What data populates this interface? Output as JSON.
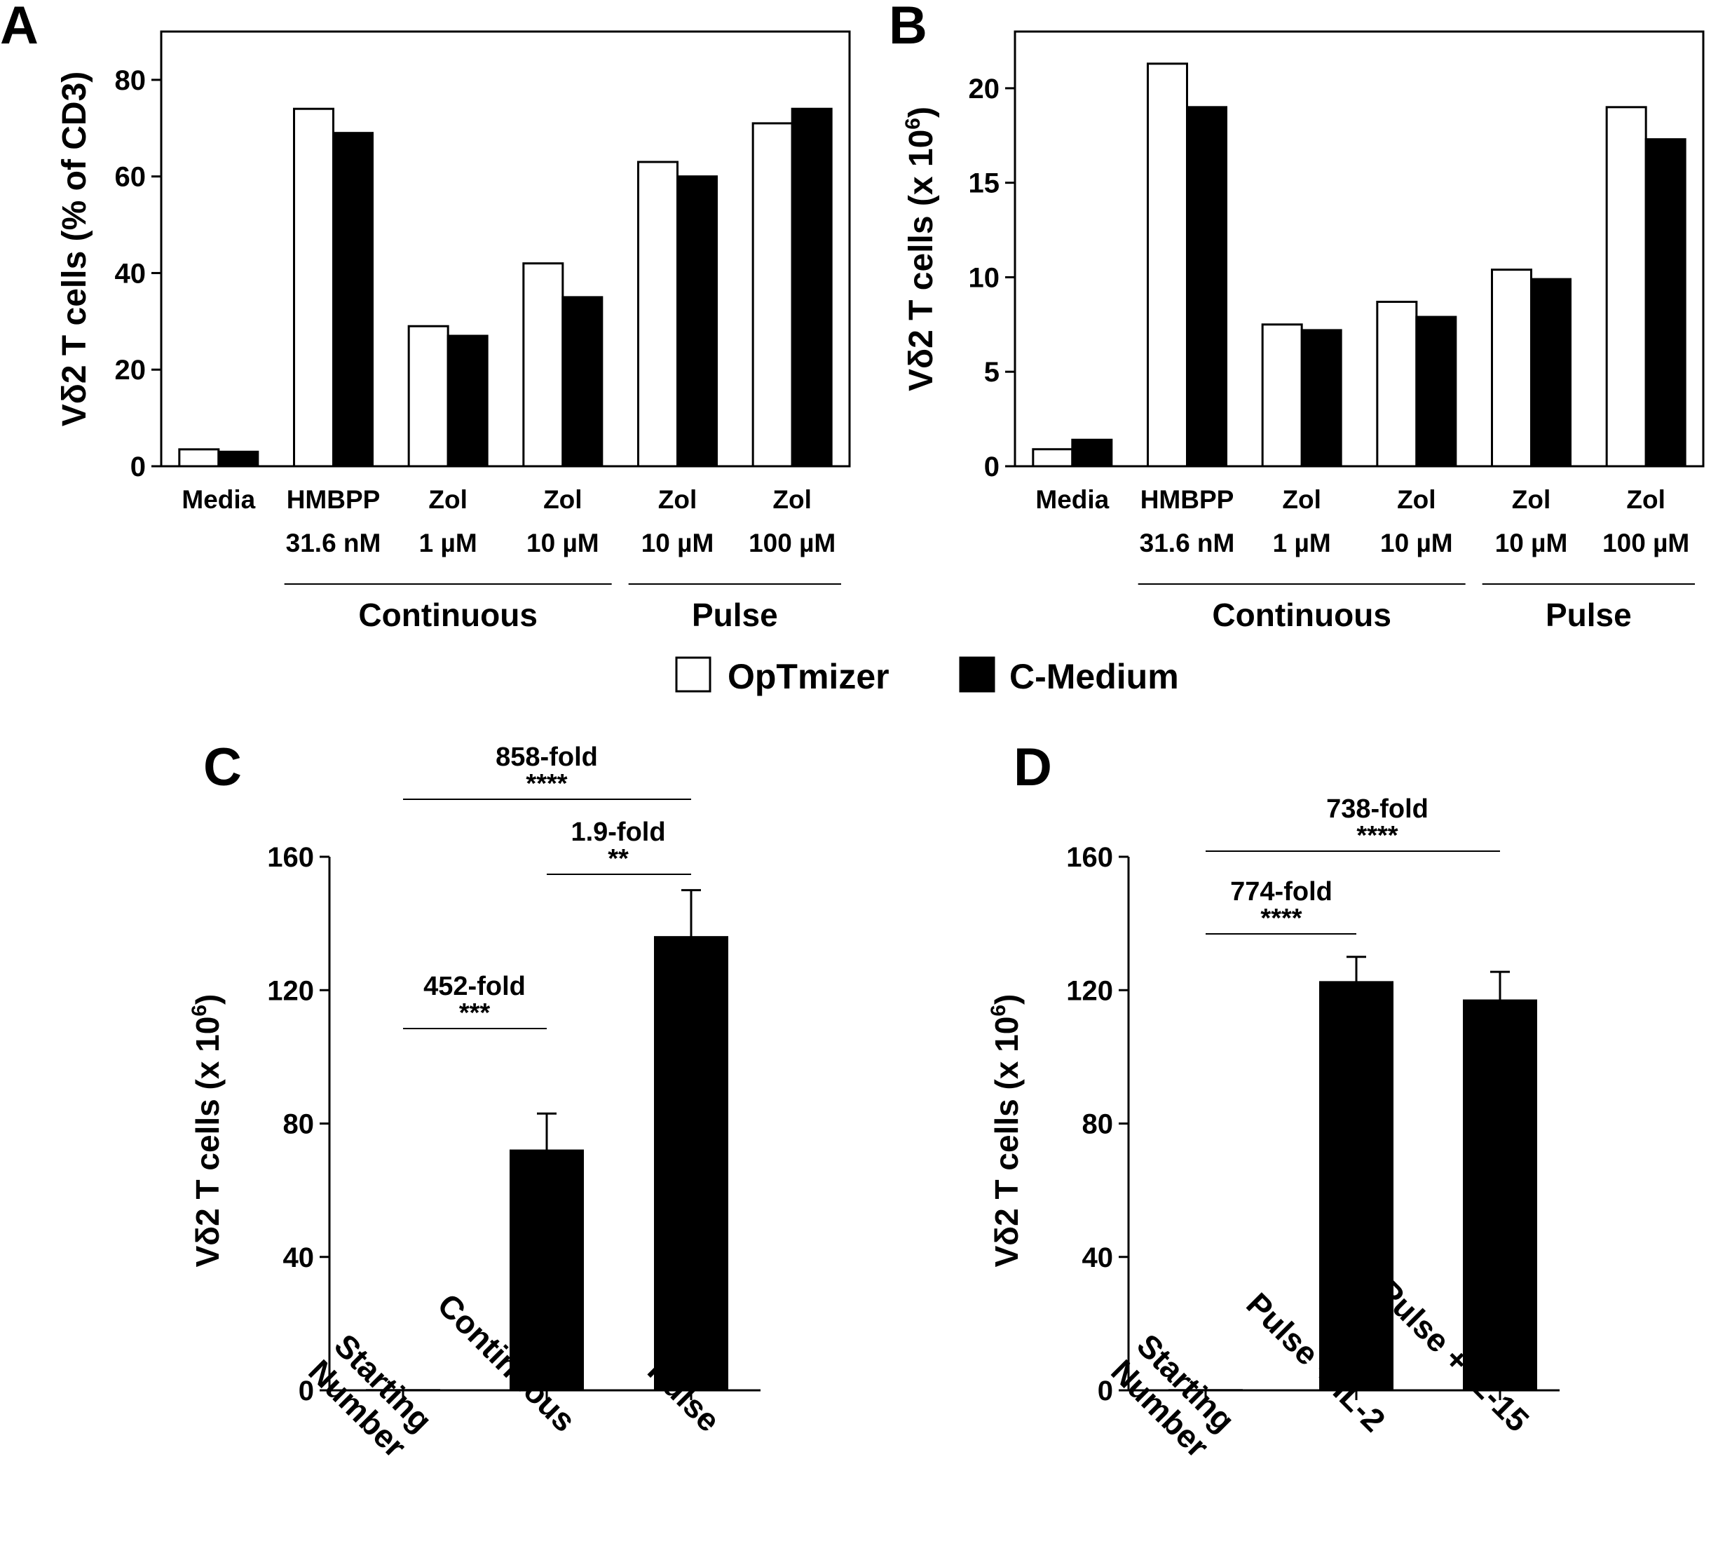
{
  "legend": {
    "items": [
      {
        "label": "OpTmizer",
        "color": "#ffffff"
      },
      {
        "label": "C-Medium",
        "color": "#000000"
      }
    ]
  },
  "chart_data": [
    {
      "panel": "A",
      "type": "bar",
      "ylabel": "Vδ2 T cells (% of CD3)",
      "ylim": [
        0,
        90
      ],
      "yticks": [
        0,
        20,
        40,
        60,
        80
      ],
      "categories": [
        [
          "Media",
          ""
        ],
        [
          "HMBPP",
          "31.6 nM"
        ],
        [
          "Zol",
          "1 µM"
        ],
        [
          "Zol",
          "10 µM"
        ],
        [
          "Zol",
          "10 µM"
        ],
        [
          "Zol",
          "100 µM"
        ]
      ],
      "groups": [
        {
          "label": "Continuous",
          "from": 1,
          "to": 3
        },
        {
          "label": "Pulse",
          "from": 4,
          "to": 5
        }
      ],
      "series": [
        {
          "name": "OpTmizer",
          "color": "#ffffff",
          "values": [
            3.5,
            74,
            29,
            42,
            63,
            71
          ]
        },
        {
          "name": "C-Medium",
          "color": "#000000",
          "values": [
            3,
            69,
            27,
            35,
            60,
            74
          ]
        }
      ],
      "grid": false
    },
    {
      "panel": "B",
      "type": "bar",
      "ylabel": "Vδ2 T cells (x 10",
      "ylabel_sup": "6",
      "ylabel_end": ")",
      "ylim": [
        0,
        23
      ],
      "yticks": [
        0,
        5,
        10,
        15,
        20
      ],
      "categories": [
        [
          "Media",
          ""
        ],
        [
          "HMBPP",
          "31.6 nM"
        ],
        [
          "Zol",
          "1 µM"
        ],
        [
          "Zol",
          "10 µM"
        ],
        [
          "Zol",
          "10 µM"
        ],
        [
          "Zol",
          "100 µM"
        ]
      ],
      "groups": [
        {
          "label": "Continuous",
          "from": 1,
          "to": 3
        },
        {
          "label": "Pulse",
          "from": 4,
          "to": 5
        }
      ],
      "series": [
        {
          "name": "OpTmizer",
          "color": "#ffffff",
          "values": [
            0.9,
            21.3,
            7.5,
            8.7,
            10.4,
            19.0
          ]
        },
        {
          "name": "C-Medium",
          "color": "#000000",
          "values": [
            1.4,
            19.0,
            7.2,
            7.9,
            9.9,
            17.3
          ]
        }
      ],
      "grid": false
    },
    {
      "panel": "C",
      "type": "bar",
      "ylabel": "Vδ2 T cells (x 10",
      "ylabel_sup": "6",
      "ylabel_end": ")",
      "ylim": [
        0,
        160
      ],
      "yticks": [
        0,
        40,
        80,
        120,
        160
      ],
      "categories": [
        "Starting\nNumber",
        "Continuous",
        "Pulse"
      ],
      "values": [
        0.16,
        72,
        136
      ],
      "errors": [
        0,
        11,
        14
      ],
      "annotations": [
        {
          "from": 0,
          "to": 1,
          "fold": "452-fold",
          "stars": "***"
        },
        {
          "from": 1,
          "to": 2,
          "fold": "1.9-fold",
          "stars": "**"
        },
        {
          "from": 0,
          "to": 2,
          "fold": "858-fold",
          "stars": "****"
        }
      ],
      "grid": false
    },
    {
      "panel": "D",
      "type": "bar",
      "ylabel": "Vδ2 T cells (x 10",
      "ylabel_sup": "6",
      "ylabel_end": ")",
      "ylim": [
        0,
        160
      ],
      "yticks": [
        0,
        40,
        80,
        120,
        160
      ],
      "categories": [
        "Starting\nNumber",
        "Pulse + IL-2",
        "Pulse + IL-15"
      ],
      "values": [
        0.16,
        122.5,
        117
      ],
      "errors": [
        0,
        7.5,
        8.5
      ],
      "annotations": [
        {
          "from": 0,
          "to": 1,
          "fold": "774-fold",
          "stars": "****"
        },
        {
          "from": 0,
          "to": 2,
          "fold": "738-fold",
          "stars": "****"
        }
      ],
      "grid": false
    }
  ]
}
